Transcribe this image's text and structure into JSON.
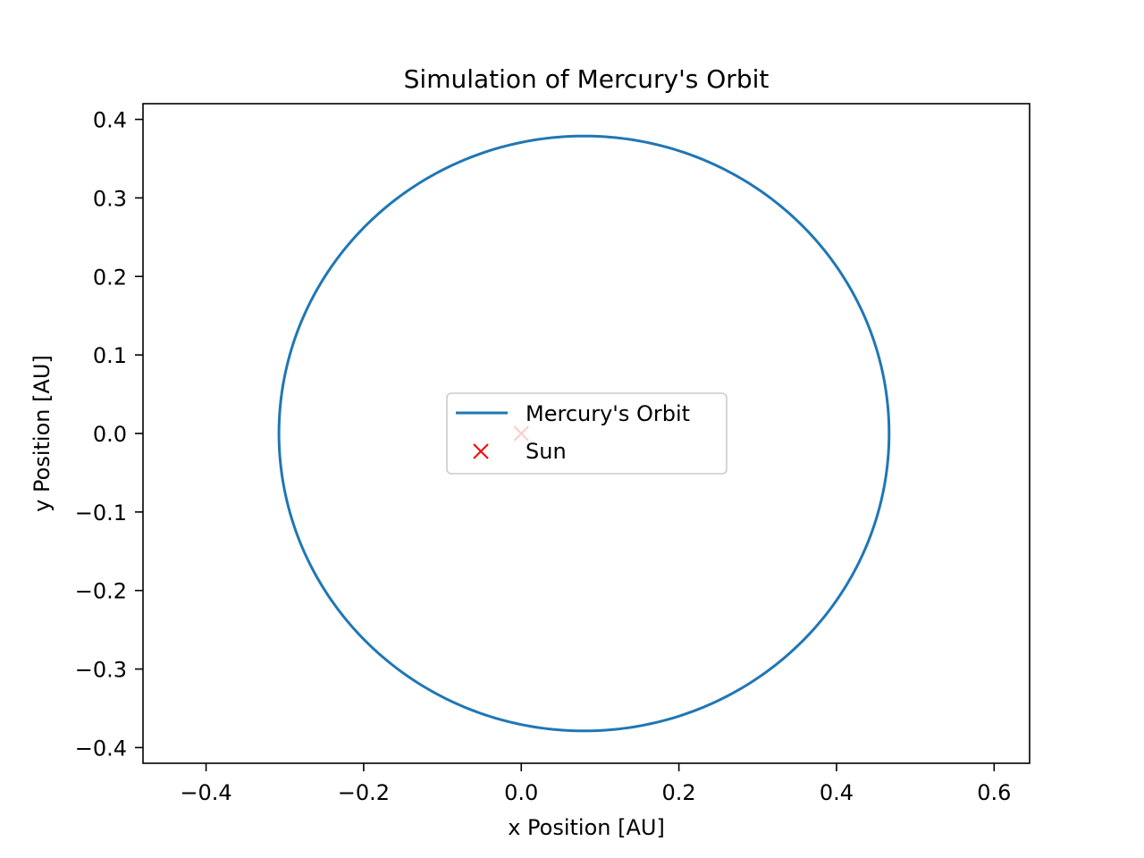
{
  "chart_data": {
    "type": "line",
    "title": "Simulation of Mercury's Orbit",
    "xlabel": "x Position [AU]",
    "ylabel": "y Position [AU]",
    "xlim": [
      -0.48,
      0.645
    ],
    "ylim": [
      -0.42,
      0.42
    ],
    "xticks": [
      -0.4,
      -0.2,
      0.0,
      0.2,
      0.4,
      0.6
    ],
    "xtick_labels": [
      "−0.4",
      "−0.2",
      "0.0",
      "0.2",
      "0.4",
      "0.6"
    ],
    "yticks": [
      0.4,
      0.3,
      0.2,
      0.1,
      0.0,
      -0.1,
      -0.2,
      -0.3,
      -0.4
    ],
    "ytick_labels": [
      "0.4",
      "0.3",
      "0.2",
      "0.1",
      "0.0",
      "−0.1",
      "−0.2",
      "−0.3",
      "−0.4"
    ],
    "grid": false,
    "legend_position": "center",
    "series": [
      {
        "name": "Mercury's Orbit",
        "kind": "ellipse",
        "color": "#1f77b4",
        "center": [
          0.0796,
          0.0
        ],
        "semi_major_axis": 0.3871,
        "semi_minor_axis": 0.3788
      },
      {
        "name": "Sun",
        "kind": "scatter",
        "marker": "x",
        "color": "#ff0000",
        "x": [
          0.0
        ],
        "y": [
          0.0
        ]
      }
    ]
  }
}
